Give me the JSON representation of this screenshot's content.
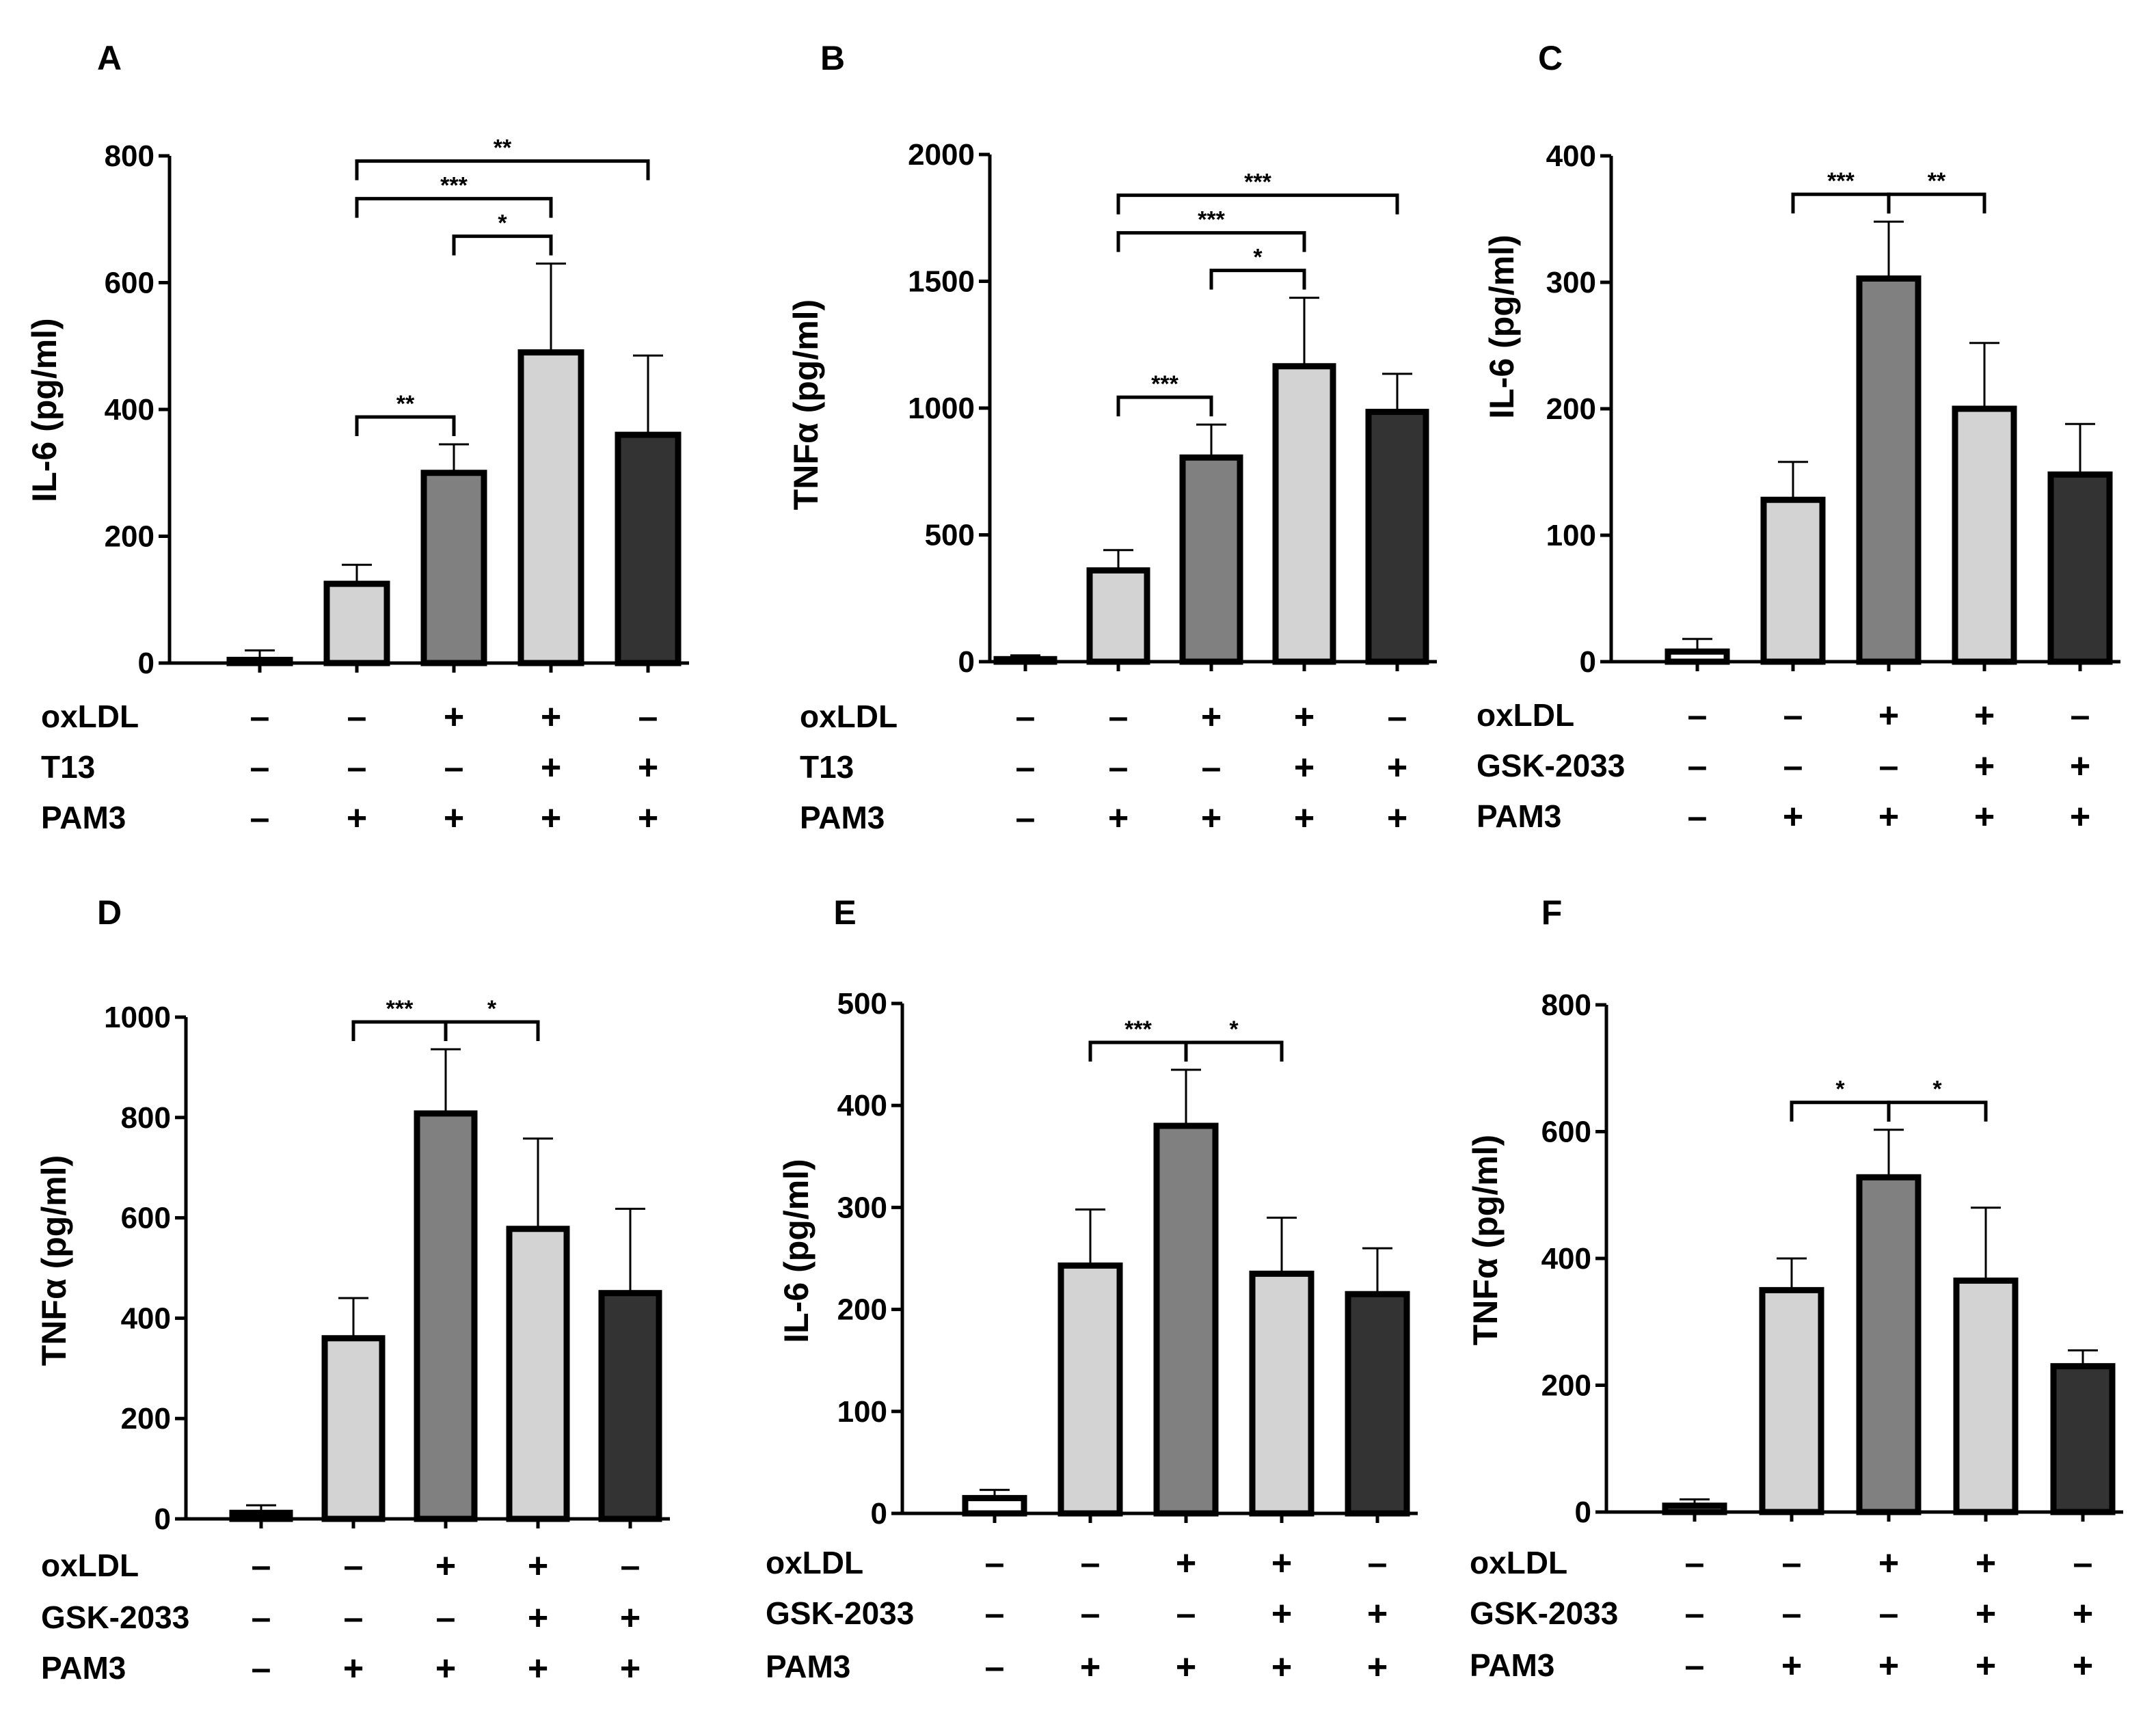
{
  "colors": {
    "light": "#d3d3d3",
    "mid": "#808080",
    "dark": "#333333",
    "white": "#ffffff"
  },
  "chart_data": [
    {
      "panel": "A",
      "type": "bar",
      "ylabel": "IL-6 (pg/ml)",
      "ylim": [
        0,
        800
      ],
      "yticks": [
        0,
        200,
        400,
        600,
        800
      ],
      "values": [
        5,
        125,
        300,
        490,
        360
      ],
      "errors": [
        15,
        30,
        45,
        140,
        125
      ],
      "bar_colors": [
        "white",
        "light",
        "mid",
        "light",
        "dark"
      ],
      "conditions": [
        {
          "label": "oxLDL",
          "signs": [
            "–",
            "–",
            "+",
            "+",
            "–"
          ]
        },
        {
          "label": "T13",
          "signs": [
            "–",
            "–",
            "–",
            "+",
            "+"
          ]
        },
        {
          "label": "PAM3",
          "signs": [
            "–",
            "+",
            "+",
            "+",
            "+"
          ]
        }
      ],
      "significance": [
        {
          "from": 1,
          "to": 2,
          "label": "**"
        },
        {
          "from": 2,
          "to": 3,
          "label": "*"
        },
        {
          "from": 1,
          "to": 3,
          "label": "***"
        },
        {
          "from": 1,
          "to": 4,
          "label": "**"
        }
      ]
    },
    {
      "panel": "B",
      "type": "bar",
      "ylabel": "TNFα (pg/ml)",
      "ylim": [
        0,
        2000
      ],
      "yticks": [
        0,
        500,
        1000,
        1500,
        2000
      ],
      "values": [
        10,
        360,
        805,
        1165,
        985
      ],
      "errors": [
        15,
        80,
        130,
        270,
        150
      ],
      "bar_colors": [
        "white",
        "light",
        "mid",
        "light",
        "dark"
      ],
      "conditions": [
        {
          "label": "oxLDL",
          "signs": [
            "–",
            "–",
            "+",
            "+",
            "–"
          ]
        },
        {
          "label": "T13",
          "signs": [
            "–",
            "–",
            "–",
            "+",
            "+"
          ]
        },
        {
          "label": "PAM3",
          "signs": [
            "–",
            "+",
            "+",
            "+",
            "+"
          ]
        }
      ],
      "significance": [
        {
          "from": 1,
          "to": 2,
          "label": "***"
        },
        {
          "from": 2,
          "to": 3,
          "label": "*"
        },
        {
          "from": 1,
          "to": 3,
          "label": "***"
        },
        {
          "from": 1,
          "to": 4,
          "label": "***"
        }
      ]
    },
    {
      "panel": "C",
      "type": "bar",
      "ylabel": "IL-6 (pg/ml)",
      "ylim": [
        0,
        400
      ],
      "yticks": [
        0,
        100,
        200,
        300,
        400
      ],
      "values": [
        8,
        128,
        303,
        200,
        148
      ],
      "errors": [
        10,
        30,
        45,
        52,
        40
      ],
      "bar_colors": [
        "white",
        "light",
        "mid",
        "light",
        "dark"
      ],
      "conditions": [
        {
          "label": "oxLDL",
          "signs": [
            "–",
            "–",
            "+",
            "+",
            "–"
          ]
        },
        {
          "label": "GSK-2033",
          "signs": [
            "–",
            "–",
            "–",
            "+",
            "+"
          ]
        },
        {
          "label": "PAM3",
          "signs": [
            "–",
            "+",
            "+",
            "+",
            "+"
          ]
        }
      ],
      "significance": [
        {
          "from": 1,
          "to": 2,
          "label": "***"
        },
        {
          "from": 2,
          "to": 3,
          "label": "**"
        }
      ]
    },
    {
      "panel": "D",
      "type": "bar",
      "ylabel": "TNFα (pg/ml)",
      "ylim": [
        0,
        1000
      ],
      "yticks": [
        0,
        200,
        400,
        600,
        800,
        1000
      ],
      "values": [
        12,
        360,
        808,
        578,
        450
      ],
      "errors": [
        15,
        80,
        128,
        180,
        168
      ],
      "bar_colors": [
        "white",
        "light",
        "mid",
        "light",
        "dark"
      ],
      "conditions": [
        {
          "label": "oxLDL",
          "signs": [
            "–",
            "–",
            "+",
            "+",
            "–"
          ]
        },
        {
          "label": "GSK-2033",
          "signs": [
            "–",
            "–",
            "–",
            "+",
            "+"
          ]
        },
        {
          "label": "PAM3",
          "signs": [
            "–",
            "+",
            "+",
            "+",
            "+"
          ]
        }
      ],
      "significance": [
        {
          "from": 1,
          "to": 2,
          "label": "***"
        },
        {
          "from": 2,
          "to": 3,
          "label": "*"
        }
      ]
    },
    {
      "panel": "E",
      "type": "bar",
      "ylabel": "IL-6 (pg/ml)",
      "ylim": [
        0,
        500
      ],
      "yticks": [
        0,
        100,
        200,
        300,
        400,
        500
      ],
      "values": [
        15,
        243,
        380,
        235,
        215
      ],
      "errors": [
        8,
        55,
        55,
        55,
        45
      ],
      "bar_colors": [
        "white",
        "light",
        "mid",
        "light",
        "dark"
      ],
      "conditions": [
        {
          "label": "oxLDL",
          "signs": [
            "–",
            "–",
            "+",
            "+",
            "–"
          ]
        },
        {
          "label": "GSK-2033",
          "signs": [
            "–",
            "–",
            "–",
            "+",
            "+"
          ]
        },
        {
          "label": "PAM3",
          "signs": [
            "–",
            "+",
            "+",
            "+",
            "+"
          ]
        }
      ],
      "significance": [
        {
          "from": 1,
          "to": 2,
          "label": "***"
        },
        {
          "from": 2,
          "to": 3,
          "label": "*"
        }
      ]
    },
    {
      "panel": "F",
      "type": "bar",
      "ylabel": "TNFα (pg/ml)",
      "ylim": [
        0,
        800
      ],
      "yticks": [
        0,
        200,
        400,
        600,
        800
      ],
      "values": [
        10,
        350,
        528,
        365,
        230
      ],
      "errors": [
        10,
        50,
        75,
        115,
        25
      ],
      "bar_colors": [
        "white",
        "light",
        "mid",
        "light",
        "dark"
      ],
      "conditions": [
        {
          "label": "oxLDL",
          "signs": [
            "–",
            "–",
            "+",
            "+",
            "–"
          ]
        },
        {
          "label": "GSK-2033",
          "signs": [
            "–",
            "–",
            "–",
            "+",
            "+"
          ]
        },
        {
          "label": "PAM3",
          "signs": [
            "–",
            "+",
            "+",
            "+",
            "+"
          ]
        }
      ],
      "significance": [
        {
          "from": 1,
          "to": 2,
          "label": "*"
        },
        {
          "from": 2,
          "to": 3,
          "label": "*"
        }
      ]
    }
  ]
}
